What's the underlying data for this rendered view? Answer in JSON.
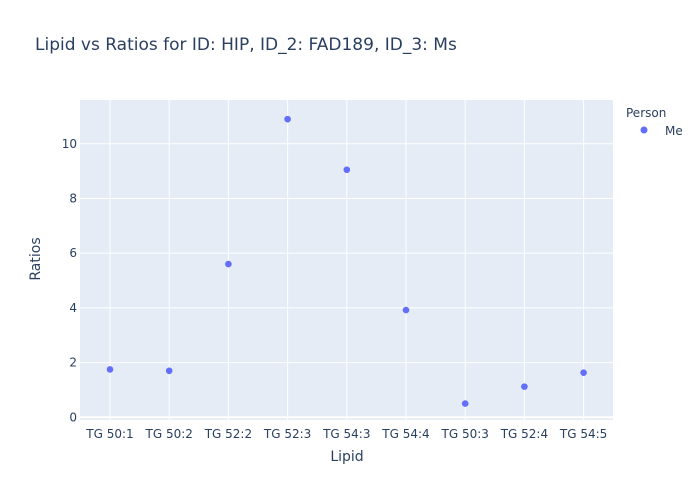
{
  "chart_data": {
    "type": "scatter",
    "title": "Lipid vs Ratios for ID: HIP, ID_2: FAD189, ID_3: Ms",
    "xlabel": "Lipid",
    "ylabel": "Ratios",
    "categories": [
      "TG 50:1",
      "TG 50:2",
      "TG 52:2",
      "TG 52:3",
      "TG 54:3",
      "TG 54:4",
      "TG 50:3",
      "TG 52:4",
      "TG 54:5"
    ],
    "yticks": [
      "0",
      "2",
      "4",
      "6",
      "8",
      "10"
    ],
    "ylim": [
      -0.1,
      11.6
    ],
    "grid": true,
    "legend": {
      "title": "Person",
      "position": "top-right"
    },
    "series": [
      {
        "name": "Me",
        "color": "#636efa",
        "values": [
          1.75,
          1.7,
          5.6,
          10.9,
          9.05,
          3.92,
          0.5,
          1.12,
          1.63
        ]
      }
    ],
    "colors": {
      "plot_bg": "#e5ecf6",
      "grid": "#ffffff",
      "text": "#2a3f5f"
    }
  }
}
